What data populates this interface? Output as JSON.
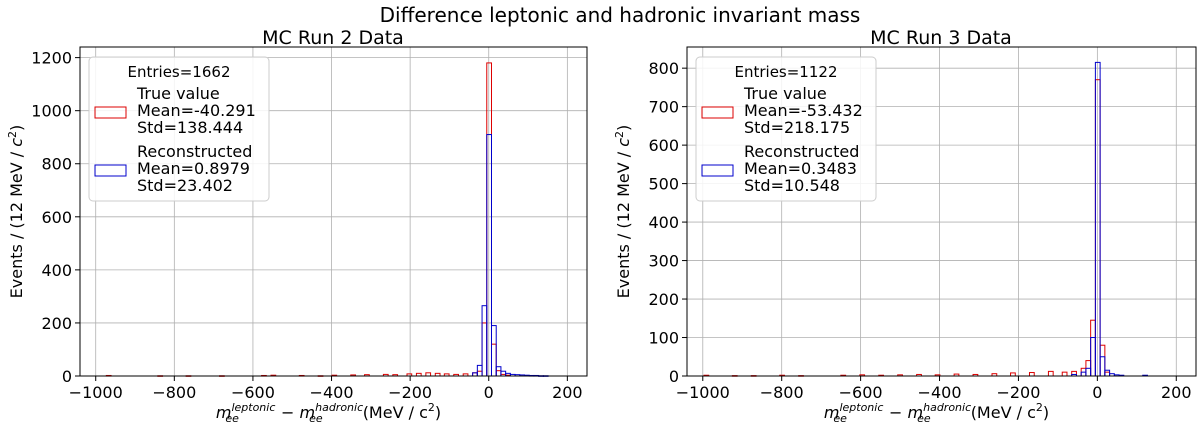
{
  "figure": {
    "suptitle": "Difference leptonic and hadronic invariant mass"
  },
  "chart_data": [
    {
      "type": "histogram",
      "title": "MC Run 2 Data",
      "xlabel": {
        "m": "m",
        "sub": "ee",
        "sup1": "leptonic",
        "sup2": "hadronic",
        "unit": "(MeV / c",
        "unit_sup": "2",
        "unit_close": ")"
      },
      "ylabel": {
        "text": "Events / (12 MeV /",
        "c": "c",
        "sup": "2",
        "close": ")"
      },
      "xlim": [
        -1040,
        250
      ],
      "ylim": [
        0,
        1240
      ],
      "xticks": [
        -1000,
        -800,
        -600,
        -400,
        -200,
        0,
        200
      ],
      "xtick_labels": [
        "−1000",
        "−800",
        "−600",
        "−400",
        "−200",
        "0",
        "200"
      ],
      "yticks": [
        0,
        200,
        400,
        600,
        800,
        1000,
        1200
      ],
      "ytick_labels": [
        "0",
        "200",
        "400",
        "600",
        "800",
        "1000",
        "1200"
      ],
      "grid": true,
      "legend": {
        "placement": "upper-left",
        "title": "Entries=1662",
        "entries": [
          {
            "lines": [
              "True value",
              "Mean=-40.291",
              "Std=138.444"
            ],
            "color": "#dd0000"
          },
          {
            "lines": [
              "Reconstructed",
              "Mean=0.8979",
              "Std=23.402"
            ],
            "color": "#0000cc"
          }
        ]
      },
      "series": [
        {
          "name": "True value",
          "color": "#dd0000",
          "x": [
            -967,
            -836,
            -764,
            -679,
            -572,
            -548,
            -476,
            -428,
            -393,
            -345,
            -310,
            -262,
            -238,
            -202,
            -178,
            -154,
            -130,
            -107,
            -83,
            -59,
            -35,
            -23,
            -11,
            1,
            13,
            25,
            37,
            49
          ],
          "y": [
            2,
            1,
            1,
            1,
            2,
            3,
            2,
            1,
            3,
            4,
            5,
            6,
            5,
            8,
            10,
            12,
            10,
            8,
            6,
            8,
            12,
            18,
            200,
            1180,
            120,
            20,
            6,
            3
          ]
        },
        {
          "name": "Reconstructed",
          "color": "#0000cc",
          "x": [
            -35,
            -23,
            -11,
            1,
            13,
            25,
            37,
            49,
            61,
            73,
            85,
            97,
            109,
            121,
            133,
            145
          ],
          "y": [
            12,
            40,
            265,
            910,
            190,
            35,
            18,
            10,
            6,
            5,
            4,
            3,
            2,
            2,
            1,
            1
          ]
        }
      ]
    },
    {
      "type": "histogram",
      "title": "MC Run 3 Data",
      "xlabel": {
        "m": "m",
        "sub": "ee",
        "sup1": "leptonic",
        "sup2": "hadronic",
        "unit": "(MeV / c",
        "unit_sup": "2",
        "unit_close": ")"
      },
      "ylabel": {
        "text": "Events / (12 MeV /",
        "c": "c",
        "sup": "2",
        "close": ")"
      },
      "xlim": [
        -1040,
        250
      ],
      "ylim": [
        0,
        855
      ],
      "xticks": [
        -1000,
        -800,
        -600,
        -400,
        -200,
        0,
        200
      ],
      "xtick_labels": [
        "−1000",
        "−800",
        "−600",
        "−400",
        "−200",
        "0",
        "200"
      ],
      "yticks": [
        0,
        100,
        200,
        300,
        400,
        500,
        600,
        700,
        800
      ],
      "ytick_labels": [
        "0",
        "100",
        "200",
        "300",
        "400",
        "500",
        "600",
        "700",
        "800"
      ],
      "grid": true,
      "legend": {
        "placement": "upper-left",
        "title": "Entries=1122",
        "entries": [
          {
            "lines": [
              "True value",
              "Mean=-53.432",
              "Std=218.175"
            ],
            "color": "#dd0000"
          },
          {
            "lines": [
              "Reconstructed",
              "Mean=0.3483",
              "Std=10.548"
            ],
            "color": "#0000cc"
          }
        ]
      },
      "series": [
        {
          "name": "True value",
          "color": "#dd0000",
          "x": [
            -991,
            -919,
            -871,
            -799,
            -751,
            -644,
            -596,
            -548,
            -500,
            -452,
            -405,
            -357,
            -309,
            -261,
            -214,
            -166,
            -118,
            -83,
            -59,
            -35,
            -23,
            -11,
            1,
            13,
            25
          ],
          "y": [
            2,
            1,
            1,
            2,
            1,
            2,
            3,
            2,
            3,
            4,
            3,
            5,
            4,
            6,
            8,
            9,
            12,
            10,
            12,
            20,
            40,
            145,
            770,
            80,
            10
          ]
        },
        {
          "name": "Reconstructed",
          "color": "#0000cc",
          "x": [
            -59,
            -35,
            -23,
            -11,
            1,
            13,
            25,
            37,
            49,
            61,
            121
          ],
          "y": [
            4,
            10,
            20,
            100,
            815,
            50,
            15,
            6,
            3,
            2,
            2
          ]
        }
      ]
    }
  ]
}
